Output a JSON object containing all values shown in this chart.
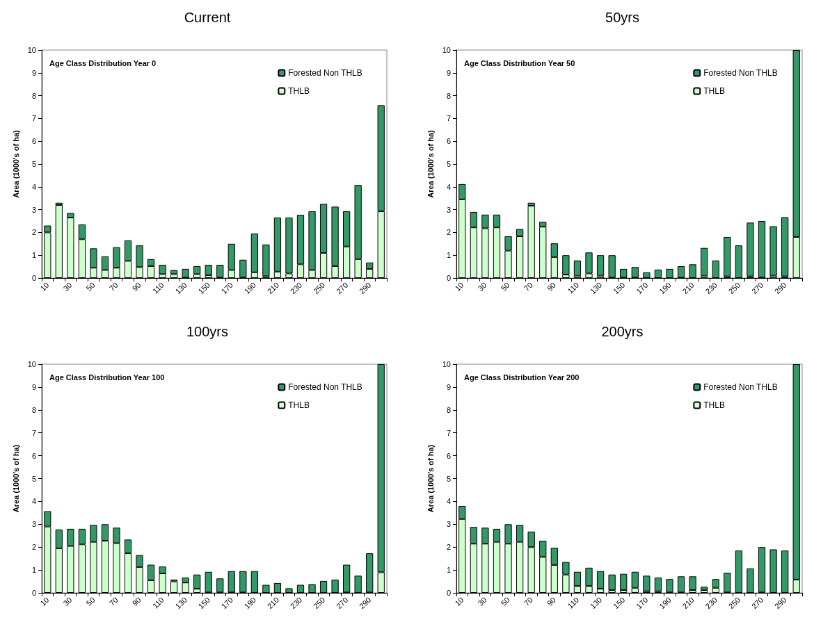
{
  "chart_data": [
    {
      "type": "bar",
      "title": "Current",
      "subtitle": "Age Class Distribution Year 0",
      "ylabel": "Area (1000's of ha)",
      "stacked": true,
      "legend": "top right",
      "grid": false,
      "categories": [
        "10",
        null,
        "30",
        null,
        "50",
        null,
        "70",
        null,
        "90",
        null,
        "110",
        null,
        "130",
        null,
        "150",
        null,
        "170",
        null,
        "190",
        null,
        "210",
        null,
        "230",
        null,
        "250",
        null,
        "270",
        null,
        "290",
        null
      ],
      "ylim": [
        0,
        10
      ],
      "yticks": [
        0,
        1,
        2,
        3,
        4,
        5,
        6,
        7,
        8,
        9,
        10
      ],
      "series": [
        {
          "name": "THLB",
          "color": "#ccffcc",
          "values": [
            2.0,
            3.2,
            2.65,
            1.7,
            0.45,
            0.35,
            0.45,
            0.75,
            0.48,
            0.52,
            0.17,
            0.17,
            0.02,
            0.17,
            0.12,
            0.02,
            0.35,
            0.02,
            0.25,
            0.08,
            0.28,
            0.2,
            0.6,
            0.35,
            1.1,
            0.52,
            1.38,
            0.83,
            0.4,
            2.93
          ]
        },
        {
          "name": "Forested Non THLB",
          "color": "#339966",
          "values": [
            0.3,
            0.1,
            0.2,
            0.65,
            0.85,
            0.6,
            0.9,
            0.9,
            0.95,
            0.31,
            0.41,
            0.18,
            0.38,
            0.35,
            0.46,
            0.56,
            1.15,
            0.78,
            1.7,
            1.39,
            2.37,
            2.45,
            2.17,
            2.58,
            2.15,
            2.61,
            1.55,
            3.25,
            0.28,
            4.65
          ]
        }
      ]
    },
    {
      "type": "bar",
      "title": "50yrs",
      "subtitle": "Age Class Distribution Year 50",
      "ylabel": "Area (1000's of ha)",
      "stacked": true,
      "legend": "top right",
      "grid": false,
      "categories": [
        "10",
        null,
        "30",
        null,
        "50",
        null,
        "70",
        null,
        "90",
        null,
        "110",
        null,
        "130",
        null,
        "150",
        null,
        "170",
        null,
        "190",
        null,
        "210",
        null,
        "230",
        null,
        "250",
        null,
        "270",
        null,
        "290",
        null
      ],
      "ylim": [
        0,
        10
      ],
      "yticks": [
        0,
        1,
        2,
        3,
        4,
        5,
        6,
        7,
        8,
        9,
        10
      ],
      "series": [
        {
          "name": "THLB",
          "color": "#ccffcc",
          "values": [
            3.45,
            2.22,
            2.18,
            2.22,
            1.2,
            1.83,
            3.17,
            2.25,
            0.92,
            0.15,
            0.1,
            0.2,
            0.1,
            0.02,
            0.02,
            0.02,
            0,
            0,
            0,
            0.02,
            0,
            0.1,
            0,
            0.07,
            0,
            0.07,
            0.02,
            0.1,
            0.07,
            1.8
          ]
        },
        {
          "name": "Forested Non THLB",
          "color": "#339966",
          "values": [
            0.67,
            0.68,
            0.6,
            0.56,
            0.63,
            0.32,
            0.13,
            0.22,
            0.6,
            0.85,
            0.67,
            0.92,
            0.9,
            0.98,
            0.38,
            0.46,
            0.25,
            0.37,
            0.4,
            0.5,
            0.6,
            1.22,
            0.77,
            1.73,
            1.43,
            2.36,
            2.48,
            2.17,
            2.6,
            8.2
          ]
        }
      ]
    },
    {
      "type": "bar",
      "title": "100yrs",
      "subtitle": "Age Class Distribution Year 100",
      "ylabel": "Area (1000's of ha)",
      "stacked": true,
      "legend": "top right",
      "grid": false,
      "categories": [
        "10",
        null,
        "30",
        null,
        "50",
        null,
        "70",
        null,
        "90",
        null,
        "110",
        null,
        "130",
        null,
        "150",
        null,
        "170",
        null,
        "190",
        null,
        "210",
        null,
        "230",
        null,
        "250",
        null,
        "270",
        null,
        "290",
        null
      ],
      "ylim": [
        0,
        10
      ],
      "yticks": [
        0,
        1,
        2,
        3,
        4,
        5,
        6,
        7,
        8,
        9,
        10
      ],
      "series": [
        {
          "name": "THLB",
          "color": "#ccffcc",
          "values": [
            2.9,
            1.95,
            2.05,
            2.12,
            2.23,
            2.28,
            2.17,
            1.73,
            1.13,
            0.55,
            0.85,
            0.5,
            0.45,
            0.18,
            0.02,
            0.02,
            0.02,
            0.02,
            0,
            0,
            0,
            0,
            0,
            0,
            0,
            0,
            0.02,
            0,
            0.02,
            0.9
          ]
        },
        {
          "name": "Forested Non THLB",
          "color": "#339966",
          "values": [
            0.67,
            0.82,
            0.75,
            0.68,
            0.74,
            0.72,
            0.68,
            0.6,
            0.52,
            0.68,
            0.3,
            0.08,
            0.22,
            0.62,
            0.9,
            0.61,
            0.93,
            0.93,
            0.95,
            0.35,
            0.43,
            0.2,
            0.35,
            0.38,
            0.52,
            0.58,
            1.21,
            0.75,
            1.71,
            9.1
          ]
        }
      ]
    },
    {
      "type": "bar",
      "title": "200yrs",
      "subtitle": "Age Class Distribution Year 200",
      "ylabel": "Area (1000's of ha)",
      "stacked": true,
      "legend": "top right",
      "grid": false,
      "categories": [
        "10",
        null,
        "30",
        null,
        "50",
        null,
        "70",
        null,
        "90",
        null,
        "110",
        null,
        "130",
        null,
        "150",
        null,
        "170",
        null,
        "190",
        null,
        "210",
        null,
        "230",
        null,
        "250",
        null,
        "270",
        null,
        "290",
        null
      ],
      "ylim": [
        0,
        10
      ],
      "yticks": [
        0,
        1,
        2,
        3,
        4,
        5,
        6,
        7,
        8,
        9,
        10
      ],
      "series": [
        {
          "name": "THLB",
          "color": "#ccffcc",
          "values": [
            3.23,
            2.15,
            2.15,
            2.23,
            2.15,
            2.23,
            2.0,
            1.57,
            1.22,
            0.8,
            0.3,
            0.3,
            0.18,
            0.12,
            0.12,
            0.22,
            0.07,
            0.07,
            0.02,
            0.02,
            0.12,
            0.12,
            0.22,
            0.02,
            0,
            0,
            0.02,
            0,
            0,
            0.58
          ]
        },
        {
          "name": "Forested Non THLB",
          "color": "#339966",
          "values": [
            0.57,
            0.73,
            0.7,
            0.57,
            0.85,
            0.74,
            0.68,
            0.71,
            0.75,
            0.55,
            0.62,
            0.8,
            0.77,
            0.68,
            0.71,
            0.7,
            0.68,
            0.6,
            0.58,
            0.7,
            0.6,
            0.15,
            0.38,
            0.86,
            1.85,
            1.07,
            1.98,
            1.9,
            1.85,
            9.42
          ]
        }
      ]
    }
  ]
}
